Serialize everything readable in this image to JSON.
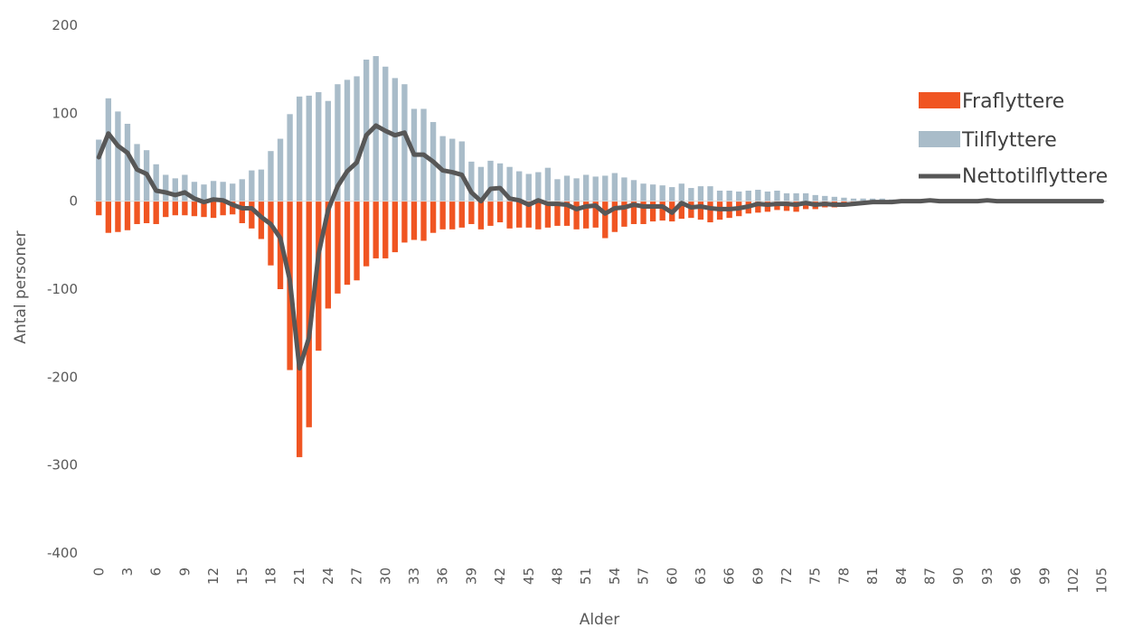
{
  "chart_data": {
    "type": "bar",
    "xlabel": "Alder",
    "ylabel": "Antal personer",
    "ylim": [
      -400,
      200
    ],
    "yticks": [
      200,
      100,
      0,
      -100,
      -200,
      -300,
      -400
    ],
    "ytick_labels": [
      "200",
      "100",
      "0",
      "-100",
      "-200",
      "-300",
      "-400"
    ],
    "xtick_labels": [
      "0",
      "3",
      "6",
      "9",
      "12",
      "15",
      "18",
      "21",
      "24",
      "27",
      "30",
      "33",
      "36",
      "39",
      "42",
      "45",
      "48",
      "51",
      "54",
      "57",
      "60",
      "63",
      "66",
      "69",
      "72",
      "75",
      "78",
      "81",
      "84",
      "87",
      "90",
      "93",
      "96",
      "99",
      "102",
      "105"
    ],
    "x": [
      0,
      1,
      2,
      3,
      4,
      5,
      6,
      7,
      8,
      9,
      10,
      11,
      12,
      13,
      14,
      15,
      16,
      17,
      18,
      19,
      20,
      21,
      22,
      23,
      24,
      25,
      26,
      27,
      28,
      29,
      30,
      31,
      32,
      33,
      34,
      35,
      36,
      37,
      38,
      39,
      40,
      41,
      42,
      43,
      44,
      45,
      46,
      47,
      48,
      49,
      50,
      51,
      52,
      53,
      54,
      55,
      56,
      57,
      58,
      59,
      60,
      61,
      62,
      63,
      64,
      65,
      66,
      67,
      68,
      69,
      70,
      71,
      72,
      73,
      74,
      75,
      76,
      77,
      78,
      79,
      80,
      81,
      82,
      83,
      84,
      85,
      86,
      87,
      88,
      89,
      90,
      91,
      92,
      93,
      94,
      95,
      96,
      97,
      98,
      99,
      100,
      101,
      102,
      103,
      104,
      105
    ],
    "legend_position": "right",
    "series": [
      {
        "name": "Fraflyttere",
        "type": "bar",
        "color": "#f05522",
        "values": [
          -16,
          -36,
          -35,
          -33,
          -26,
          -25,
          -26,
          -18,
          -16,
          -16,
          -17,
          -18,
          -19,
          -16,
          -15,
          -25,
          -31,
          -43,
          -73,
          -100,
          -192,
          -291,
          -257,
          -170,
          -122,
          -105,
          -95,
          -90,
          -74,
          -65,
          -65,
          -58,
          -47,
          -44,
          -45,
          -36,
          -32,
          -32,
          -30,
          -26,
          -32,
          -28,
          -24,
          -31,
          -30,
          -30,
          -32,
          -30,
          -28,
          -28,
          -32,
          -31,
          -30,
          -42,
          -35,
          -29,
          -26,
          -26,
          -23,
          -22,
          -23,
          -20,
          -19,
          -21,
          -24,
          -21,
          -19,
          -17,
          -14,
          -13,
          -12,
          -10,
          -11,
          -12,
          -9,
          -9,
          -7,
          -7,
          -6,
          -4,
          -4,
          -3,
          -3,
          -2,
          -2,
          -1,
          -1,
          -1,
          -1,
          -1,
          -1,
          -1,
          0,
          0,
          0,
          0,
          0,
          0,
          0,
          0,
          0,
          0,
          0,
          0,
          0,
          0
        ]
      },
      {
        "name": "Tilflyttere",
        "type": "bar",
        "color": "#a9bcc9",
        "values": [
          70,
          117,
          102,
          88,
          65,
          58,
          42,
          30,
          26,
          30,
          22,
          19,
          23,
          22,
          20,
          25,
          35,
          36,
          57,
          71,
          99,
          119,
          120,
          124,
          114,
          133,
          138,
          142,
          161,
          165,
          153,
          140,
          133,
          105,
          105,
          90,
          74,
          71,
          68,
          45,
          39,
          46,
          43,
          39,
          34,
          31,
          33,
          38,
          25,
          29,
          26,
          30,
          28,
          29,
          32,
          27,
          24,
          20,
          19,
          18,
          16,
          20,
          15,
          17,
          17,
          12,
          12,
          11,
          12,
          13,
          11,
          12,
          9,
          9,
          9,
          7,
          6,
          5,
          4,
          3,
          3,
          3,
          3,
          2,
          2,
          1,
          1,
          1,
          1,
          1,
          1,
          1,
          0,
          0,
          0,
          0,
          0,
          0,
          0,
          0,
          0,
          0,
          0,
          0,
          0,
          0
        ]
      },
      {
        "name": "Nettotilflyttere",
        "type": "line",
        "color": "#575757",
        "values": [
          50,
          77,
          63,
          55,
          36,
          31,
          12,
          10,
          7,
          10,
          3,
          -1,
          2,
          1,
          -4,
          -8,
          -8,
          -18,
          -26,
          -42,
          -90,
          -190,
          -155,
          -60,
          -10,
          17,
          34,
          44,
          75,
          86,
          80,
          75,
          78,
          53,
          53,
          45,
          35,
          33,
          30,
          10,
          0,
          14,
          15,
          3,
          1,
          -4,
          1,
          -3,
          -3,
          -4,
          -9,
          -6,
          -5,
          -14,
          -8,
          -7,
          -4,
          -6,
          -6,
          -6,
          -13,
          -2,
          -7,
          -6,
          -8,
          -9,
          -9,
          -8,
          -6,
          -3,
          -4,
          -3,
          -3,
          -4,
          -2,
          -4,
          -3,
          -4,
          -4,
          -3,
          -2,
          -1,
          -1,
          -1,
          0,
          0,
          0,
          1,
          0,
          0,
          0,
          0,
          0,
          1,
          0,
          0,
          0,
          0,
          0,
          0,
          0,
          0,
          0,
          0,
          0,
          0
        ]
      }
    ]
  }
}
